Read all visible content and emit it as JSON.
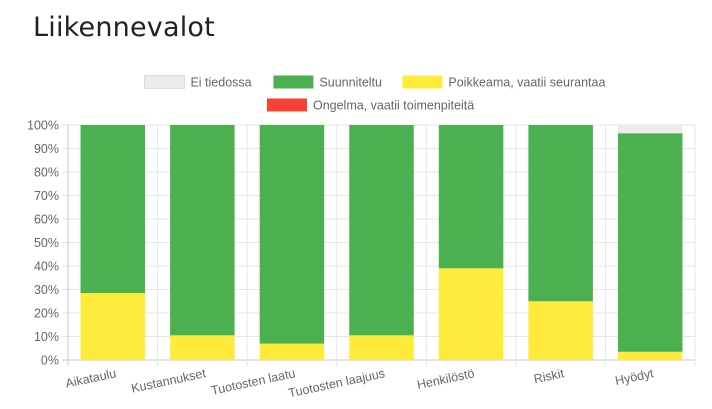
{
  "page_title": "Liikennevalot",
  "chart_data": {
    "type": "bar",
    "stacked": true,
    "title": "",
    "xlabel": "",
    "ylabel": "",
    "ylim": [
      0,
      100
    ],
    "y_tick_labels": [
      "0%",
      "10%",
      "20%",
      "30%",
      "40%",
      "50%",
      "60%",
      "70%",
      "80%",
      "90%",
      "100%"
    ],
    "grid": true,
    "legend_position": "top",
    "categories": [
      "Aikataulu",
      "Kustannukset",
      "Tuotosten laatu",
      "Tuotosten laajuus",
      "Henkilöstö",
      "Riskit",
      "Hyödyt"
    ],
    "series": [
      {
        "name": "Ei tiedossa",
        "color": "#ececec",
        "values": [
          0,
          0,
          0,
          0,
          0,
          0,
          3.5
        ]
      },
      {
        "name": "Suunniteltu",
        "color": "#4caf50",
        "values": [
          71.5,
          89.5,
          93,
          89.5,
          61,
          75,
          93
        ]
      },
      {
        "name": "Poikkeama, vaatii seurantaa",
        "color": "#ffeb3b",
        "values": [
          28.5,
          10.5,
          7,
          10.5,
          39,
          25,
          3.5
        ]
      },
      {
        "name": "Ongelma, vaatii toimenpiteitä",
        "color": "#f44336",
        "values": [
          0,
          0,
          0,
          0,
          0,
          0,
          0
        ]
      }
    ]
  }
}
